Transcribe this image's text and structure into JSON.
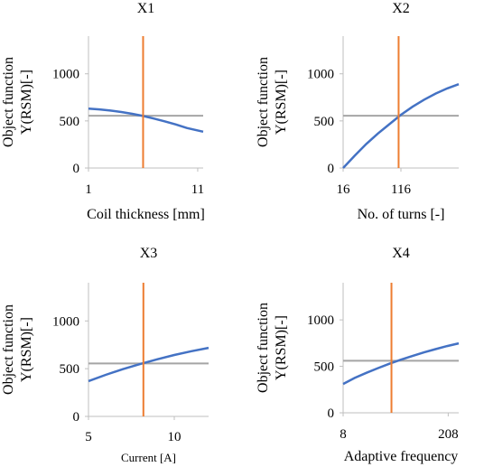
{
  "chart_data": [
    {
      "type": "line",
      "title": "X1",
      "xlabel": "Coil thickness [mm]",
      "ylabel_lines": [
        "Object function",
        "Y(RSM)[-]"
      ],
      "xlim": [
        1,
        11.5
      ],
      "ylim": [
        0,
        1400
      ],
      "xticks": [
        {
          "value": 1,
          "label": "1"
        },
        {
          "value": 11,
          "label": "11"
        }
      ],
      "yticks": [
        {
          "value": 0,
          "label": "0"
        },
        {
          "value": 500,
          "label": "500"
        },
        {
          "value": 1000,
          "label": "1000"
        }
      ],
      "grid": false,
      "series": [
        {
          "role": "response",
          "color": "#4472c4",
          "x": [
            1,
            2,
            3,
            4,
            5,
            6,
            7,
            8,
            9,
            10,
            11.5
          ],
          "y": [
            630,
            622,
            610,
            595,
            575,
            552,
            525,
            495,
            462,
            425,
            385
          ]
        }
      ],
      "reference_line": {
        "color": "#a5a5a5",
        "y": 555
      },
      "current_value": {
        "color": "#ed7d31",
        "x": 6
      }
    },
    {
      "type": "line",
      "title": "X2",
      "xlabel": "No. of turns [-]",
      "ylabel_lines": [
        "Object function",
        "Y(RSM)[-]"
      ],
      "xlim": [
        16,
        216
      ],
      "ylim": [
        0,
        1400
      ],
      "xticks": [
        {
          "value": 16,
          "label": "16"
        },
        {
          "value": 116,
          "label": "116"
        }
      ],
      "yticks": [
        {
          "value": 0,
          "label": "0"
        },
        {
          "value": 500,
          "label": "500"
        },
        {
          "value": 1000,
          "label": "1000"
        }
      ],
      "grid": false,
      "series": [
        {
          "role": "response",
          "color": "#4472c4",
          "x": [
            16,
            36,
            56,
            76,
            96,
            116,
            136,
            156,
            176,
            196,
            216
          ],
          "y": [
            0,
            130,
            255,
            365,
            465,
            565,
            650,
            725,
            790,
            845,
            890
          ]
        }
      ],
      "reference_line": {
        "color": "#a5a5a5",
        "y": 555
      },
      "current_value": {
        "color": "#ed7d31",
        "x": 112
      }
    },
    {
      "type": "line",
      "title": "X3",
      "xlabel": "Current [A]",
      "ylabel_lines": [
        "Object function",
        "Y(RSM)[-]"
      ],
      "xlim": [
        5,
        12
      ],
      "ylim": [
        0,
        1400
      ],
      "xticks": [
        {
          "value": 5,
          "label": "5"
        },
        {
          "value": 10,
          "label": "10"
        }
      ],
      "yticks": [
        {
          "value": 0,
          "label": "0"
        },
        {
          "value": 500,
          "label": "500"
        },
        {
          "value": 1000,
          "label": "1000"
        }
      ],
      "grid": false,
      "series": [
        {
          "role": "response",
          "color": "#4472c4",
          "x": [
            5,
            6,
            7,
            8,
            9,
            10,
            11,
            12
          ],
          "y": [
            370,
            435,
            495,
            548,
            598,
            643,
            683,
            718
          ]
        }
      ],
      "reference_line": {
        "color": "#a5a5a5",
        "y": 555
      },
      "current_value": {
        "color": "#ed7d31",
        "x": 8.2
      }
    },
    {
      "type": "line",
      "title": "X4",
      "xlabel": "Adaptive frequency",
      "ylabel_lines": [
        "Object function",
        "Y(RSM)[-]"
      ],
      "xlim": [
        8,
        228
      ],
      "ylim": [
        0,
        1400
      ],
      "xticks": [
        {
          "value": 8,
          "label": "8"
        },
        {
          "value": 208,
          "label": "208"
        }
      ],
      "yticks": [
        {
          "value": 0,
          "label": "0"
        },
        {
          "value": 500,
          "label": "500"
        },
        {
          "value": 1000,
          "label": "1000"
        }
      ],
      "grid": false,
      "series": [
        {
          "role": "response",
          "color": "#4472c4",
          "x": [
            8,
            30,
            52,
            74,
            96,
            118,
            140,
            162,
            184,
            206,
            228
          ],
          "y": [
            310,
            375,
            430,
            480,
            528,
            572,
            612,
            650,
            685,
            718,
            748
          ]
        }
      ],
      "reference_line": {
        "color": "#a5a5a5",
        "y": 560
      },
      "current_value": {
        "color": "#ed7d31",
        "x": 100
      }
    }
  ]
}
